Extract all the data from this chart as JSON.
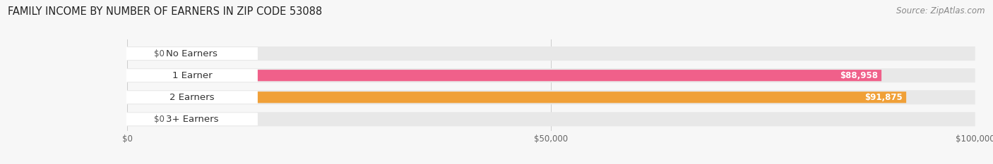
{
  "title": "FAMILY INCOME BY NUMBER OF EARNERS IN ZIP CODE 53088",
  "source": "Source: ZipAtlas.com",
  "categories": [
    "No Earners",
    "1 Earner",
    "2 Earners",
    "3+ Earners"
  ],
  "values": [
    0,
    88958,
    91875,
    0
  ],
  "labels": [
    "$0",
    "$88,958",
    "$91,875",
    "$0"
  ],
  "bar_colors": [
    "#a8a8cc",
    "#f0608a",
    "#f0a038",
    "#f0a8a0"
  ],
  "bar_track_color": "#e8e8e8",
  "xlim": [
    0,
    100000
  ],
  "xticks": [
    0,
    50000,
    100000
  ],
  "xtick_labels": [
    "$0",
    "$50,000",
    "$100,000"
  ],
  "background_color": "#f7f7f7",
  "title_fontsize": 10.5,
  "source_fontsize": 8.5,
  "label_fontsize": 8.5,
  "category_fontsize": 9.5
}
